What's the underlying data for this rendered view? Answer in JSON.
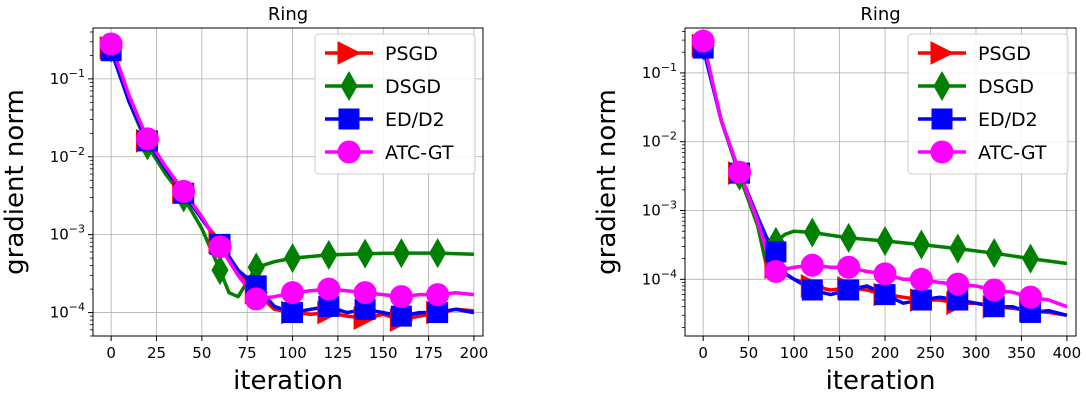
{
  "chart_data": [
    {
      "type": "line",
      "title": "Ring",
      "xlabel": "iteration",
      "ylabel": "gradient norm",
      "yscale": "log",
      "xlim": [
        -10,
        205
      ],
      "ylim": [
        5e-05,
        0.45
      ],
      "xticks": [
        "0",
        "25",
        "50",
        "75",
        "100",
        "125",
        "150",
        "175",
        "200"
      ],
      "yticks": [
        "10^-4",
        "10^-3",
        "10^-2",
        "10^-1"
      ],
      "grid": true,
      "legend": "top-right",
      "series": [
        {
          "name": "PSGD",
          "color": "#ff0000",
          "marker": "triangle-right",
          "x": [
            0,
            10,
            20,
            30,
            40,
            50,
            60,
            70,
            80,
            90,
            100,
            110,
            120,
            130,
            140,
            150,
            160,
            170,
            180,
            190,
            200
          ],
          "y": [
            0.25,
            0.055,
            0.016,
            0.007,
            0.0035,
            0.0016,
            0.0008,
            0.00035,
            0.00018,
            0.00011,
            0.0001,
            9.5e-05,
            0.0001,
            9e-05,
            8.5e-05,
            9.5e-05,
            8e-05,
            9e-05,
            0.0001,
            0.00011,
            0.000105
          ],
          "marker_x": [
            0,
            20,
            40,
            60,
            80,
            100,
            120,
            140,
            160,
            180
          ]
        },
        {
          "name": "DSGD",
          "color": "#008000",
          "marker": "diamond",
          "x": [
            0,
            10,
            20,
            30,
            40,
            50,
            60,
            65,
            70,
            75,
            80,
            90,
            100,
            120,
            140,
            160,
            180,
            200
          ],
          "y": [
            0.25,
            0.05,
            0.014,
            0.006,
            0.003,
            0.0012,
            0.00035,
            0.00018,
            0.00016,
            0.00025,
            0.00038,
            0.00045,
            0.0005,
            0.00055,
            0.00057,
            0.00058,
            0.00058,
            0.00056
          ],
          "marker_x": [
            0,
            20,
            40,
            60,
            80,
            100,
            120,
            140,
            160,
            180
          ]
        },
        {
          "name": "ED/D2",
          "color": "#0000ff",
          "marker": "square",
          "x": [
            0,
            10,
            20,
            30,
            40,
            50,
            60,
            70,
            80,
            90,
            100,
            110,
            120,
            130,
            140,
            150,
            160,
            170,
            180,
            190,
            200
          ],
          "y": [
            0.23,
            0.05,
            0.016,
            0.007,
            0.0034,
            0.0016,
            0.00075,
            0.00035,
            0.00022,
            0.00012,
            0.0001,
            0.00011,
            0.00012,
            0.0001,
            0.00011,
            0.0001,
            9e-05,
            0.0001,
            0.0001,
            0.00011,
            0.0001
          ],
          "marker_x": [
            0,
            20,
            40,
            60,
            80,
            100,
            120,
            140,
            160,
            180
          ]
        },
        {
          "name": "ATC-GT",
          "color": "#ff00ff",
          "marker": "circle",
          "x": [
            0,
            10,
            20,
            30,
            40,
            50,
            60,
            70,
            80,
            90,
            100,
            110,
            120,
            130,
            140,
            150,
            160,
            170,
            180,
            190,
            200
          ],
          "y": [
            0.28,
            0.06,
            0.017,
            0.0075,
            0.0036,
            0.0017,
            0.0007,
            0.0003,
            0.00015,
            0.00016,
            0.00018,
            0.00019,
            0.0002,
            0.00019,
            0.00018,
            0.00017,
            0.00016,
            0.00017,
            0.00017,
            0.00018,
            0.00017
          ],
          "marker_x": [
            0,
            20,
            40,
            60,
            80,
            100,
            120,
            140,
            160,
            180
          ]
        }
      ]
    },
    {
      "type": "line",
      "title": "Ring",
      "xlabel": "iteration",
      "ylabel": "gradient norm",
      "yscale": "log",
      "xlim": [
        -20,
        410
      ],
      "ylim": [
        1.5e-05,
        0.45
      ],
      "xticks": [
        "0",
        "50",
        "100",
        "150",
        "200",
        "250",
        "300",
        "350",
        "400"
      ],
      "yticks": [
        "10^-4",
        "10^-3",
        "10^-2",
        "10^-1"
      ],
      "grid": true,
      "legend": "top-right",
      "series": [
        {
          "name": "PSGD",
          "color": "#ff0000",
          "marker": "triangle-right",
          "x": [
            0,
            20,
            40,
            60,
            70,
            80,
            100,
            120,
            140,
            160,
            180,
            200,
            220,
            240,
            260,
            280,
            300,
            320,
            340,
            360,
            380,
            400
          ],
          "y": [
            0.25,
            0.02,
            0.0035,
            0.0008,
            0.0003,
            0.00015,
            0.0001,
            8e-05,
            7e-05,
            7.5e-05,
            7e-05,
            6e-05,
            5.5e-05,
            5e-05,
            5e-05,
            4.5e-05,
            4.5e-05,
            4e-05,
            3.8e-05,
            3.5e-05,
            3.3e-05,
            3e-05
          ],
          "marker_x": [
            0,
            40,
            80,
            120,
            160,
            200,
            240,
            280,
            320,
            360
          ]
        },
        {
          "name": "DSGD",
          "color": "#008000",
          "marker": "diamond",
          "x": [
            0,
            20,
            40,
            60,
            70,
            80,
            90,
            100,
            120,
            160,
            200,
            240,
            280,
            320,
            360,
            400
          ],
          "y": [
            0.25,
            0.02,
            0.0032,
            0.0006,
            0.00015,
            0.00035,
            0.00045,
            0.0005,
            0.00048,
            0.0004,
            0.00036,
            0.00032,
            0.00028,
            0.00024,
            0.0002,
            0.00017
          ],
          "marker_x": [
            0,
            40,
            80,
            120,
            160,
            200,
            240,
            280,
            320,
            360
          ]
        },
        {
          "name": "ED/D2",
          "color": "#0000ff",
          "marker": "square",
          "x": [
            0,
            20,
            40,
            60,
            70,
            80,
            90,
            100,
            120,
            140,
            160,
            180,
            200,
            220,
            240,
            260,
            280,
            300,
            320,
            340,
            360,
            380,
            400
          ],
          "y": [
            0.23,
            0.02,
            0.0035,
            0.0008,
            0.0004,
            0.00025,
            0.00012,
            0.0001,
            7e-05,
            6e-05,
            7e-05,
            8e-05,
            6e-05,
            4.5e-05,
            5e-05,
            5.5e-05,
            5e-05,
            4.5e-05,
            4e-05,
            4e-05,
            3.3e-05,
            3.5e-05,
            3e-05
          ],
          "marker_x": [
            0,
            40,
            80,
            120,
            160,
            200,
            240,
            280,
            320,
            360
          ]
        },
        {
          "name": "ATC-GT",
          "color": "#ff00ff",
          "marker": "circle",
          "x": [
            0,
            20,
            40,
            60,
            70,
            80,
            100,
            120,
            140,
            160,
            180,
            200,
            220,
            240,
            260,
            280,
            300,
            320,
            340,
            360,
            380,
            400
          ],
          "y": [
            0.29,
            0.02,
            0.0036,
            0.0007,
            0.00025,
            0.00013,
            0.00015,
            0.00016,
            0.00015,
            0.00015,
            0.00013,
            0.00012,
            0.0001,
            0.0001,
            9e-05,
            8.5e-05,
            8e-05,
            7e-05,
            6.5e-05,
            5.5e-05,
            5e-05,
            4e-05
          ],
          "marker_x": [
            0,
            40,
            80,
            120,
            160,
            200,
            240,
            280,
            320,
            360
          ]
        }
      ]
    }
  ]
}
